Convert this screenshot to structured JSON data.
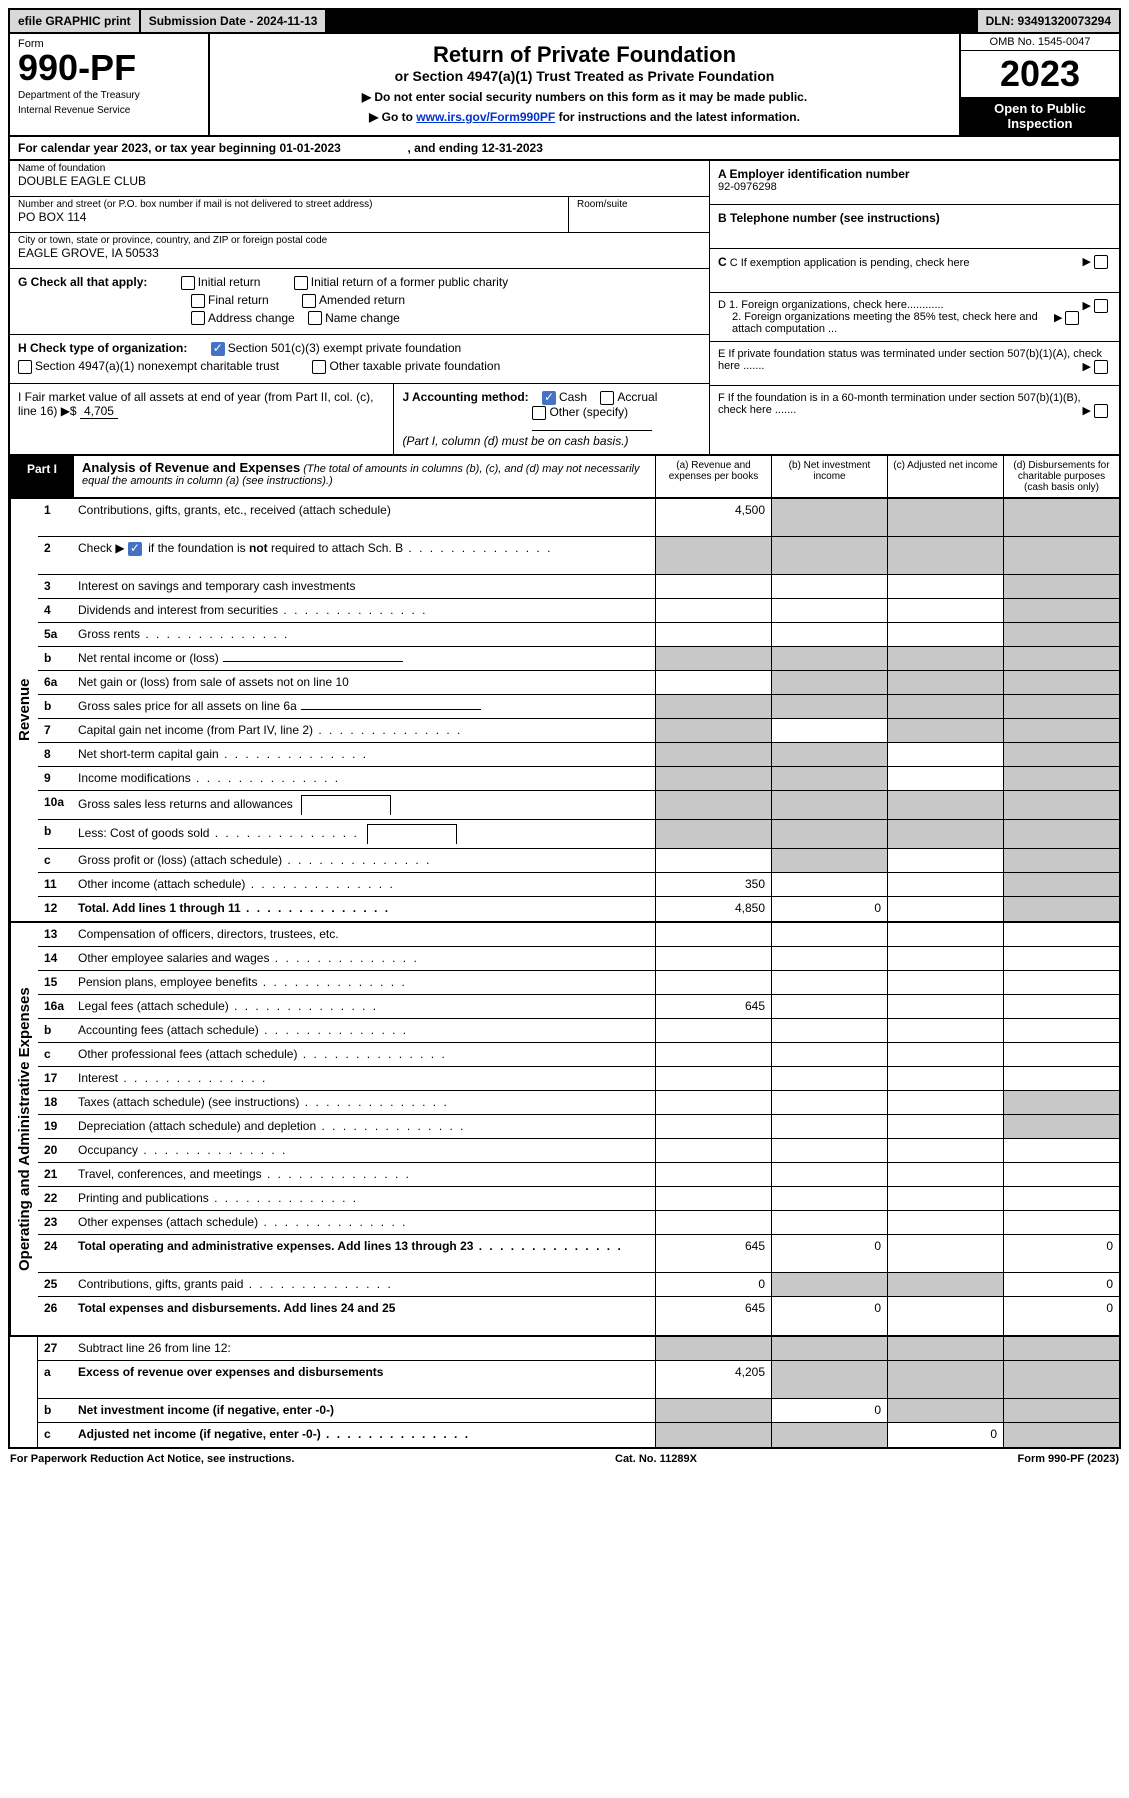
{
  "topbar": {
    "efile": "efile GRAPHIC print",
    "sub_label": "Submission Date - 2024-11-13",
    "dln": "DLN: 93491320073294"
  },
  "header": {
    "form_word": "Form",
    "form_no": "990-PF",
    "dept": "Department of the Treasury",
    "irs": "Internal Revenue Service",
    "title": "Return of Private Foundation",
    "subtitle": "or Section 4947(a)(1) Trust Treated as Private Foundation",
    "inst1": "▶ Do not enter social security numbers on this form as it may be made public.",
    "inst2_pre": "▶ Go to ",
    "inst2_link": "www.irs.gov/Form990PF",
    "inst2_post": " for instructions and the latest information.",
    "omb": "OMB No. 1545-0047",
    "year": "2023",
    "open": "Open to Public Inspection"
  },
  "calyear": "For calendar year 2023, or tax year beginning 01-01-2023                    , and ending 12-31-2023",
  "info": {
    "name_label": "Name of foundation",
    "name": "DOUBLE EAGLE CLUB",
    "addr_label": "Number and street (or P.O. box number if mail is not delivered to street address)",
    "room_label": "Room/suite",
    "addr": "PO BOX 114",
    "city_label": "City or town, state or province, country, and ZIP or foreign postal code",
    "city": "EAGLE GROVE, IA  50533",
    "ein_label": "A Employer identification number",
    "ein": "92-0976298",
    "tel_label": "B Telephone number (see instructions)",
    "c_label": "C If exemption application is pending, check here",
    "d1": "D 1. Foreign organizations, check here............",
    "d2": "2. Foreign organizations meeting the 85% test, check here and attach computation ...",
    "e_label": "E   If private foundation status was terminated under section 507(b)(1)(A), check here .......",
    "f_label": "F   If the foundation is in a 60-month termination under section 507(b)(1)(B), check here ......."
  },
  "g": {
    "label": "G Check all that apply:",
    "initial": "Initial return",
    "initial_former": "Initial return of a former public charity",
    "final": "Final return",
    "amended": "Amended return",
    "addr_change": "Address change",
    "name_change": "Name change"
  },
  "h": {
    "label": "H Check type of organization:",
    "opt1": "Section 501(c)(3) exempt private foundation",
    "opt2": "Section 4947(a)(1) nonexempt charitable trust",
    "opt3": "Other taxable private foundation"
  },
  "i": {
    "label": "I Fair market value of all assets at end of year (from Part II, col. (c), line 16)",
    "value": "4,705"
  },
  "j": {
    "label": "J Accounting method:",
    "cash": "Cash",
    "accrual": "Accrual",
    "other": "Other (specify)",
    "note": "(Part I, column (d) must be on cash basis.)"
  },
  "part1": {
    "tab": "Part I",
    "title": "Analysis of Revenue and Expenses",
    "desc": " (The total of amounts in columns (b), (c), and (d) may not necessarily equal the amounts in column (a) (see instructions).)",
    "col_a": "(a)   Revenue and expenses per books",
    "col_b": "(b)   Net investment income",
    "col_c": "(c)   Adjusted net income",
    "col_d": "(d)   Disbursements for charitable purposes (cash basis only)"
  },
  "sections": {
    "revenue": "Revenue",
    "expenses": "Operating and Administrative Expenses"
  },
  "rows": [
    {
      "section": "revenue",
      "no": "1",
      "desc": "Contributions, gifts, grants, etc., received (attach schedule)",
      "a": "4,500",
      "tall": true,
      "grey_b": true,
      "grey_c": true,
      "grey_d": true
    },
    {
      "section": "revenue",
      "no": "2",
      "desc_html": "Check ▶ [cb-checked] if the foundation is <b>not</b> required to attach Sch. B",
      "dots": true,
      "grey_a": true,
      "grey_b": true,
      "grey_c": true,
      "grey_d": true,
      "tall": true
    },
    {
      "section": "revenue",
      "no": "3",
      "desc": "Interest on savings and temporary cash investments",
      "grey_d": true
    },
    {
      "section": "revenue",
      "no": "4",
      "desc": "Dividends and interest from securities",
      "dots": true,
      "grey_d": true
    },
    {
      "section": "revenue",
      "no": "5a",
      "desc": "Gross rents",
      "dots": true,
      "grey_d": true
    },
    {
      "section": "revenue",
      "no": "b",
      "desc": "Net rental income or (loss)",
      "inline": true,
      "grey_a": true,
      "grey_b": true,
      "grey_c": true,
      "grey_d": true
    },
    {
      "section": "revenue",
      "no": "6a",
      "desc": "Net gain or (loss) from sale of assets not on line 10",
      "grey_b": true,
      "grey_c": true,
      "grey_d": true
    },
    {
      "section": "revenue",
      "no": "b",
      "desc": "Gross sales price for all assets on line 6a",
      "inline": true,
      "grey_a": true,
      "grey_b": true,
      "grey_c": true,
      "grey_d": true
    },
    {
      "section": "revenue",
      "no": "7",
      "desc": "Capital gain net income (from Part IV, line 2)",
      "dots": true,
      "grey_a": true,
      "grey_c": true,
      "grey_d": true
    },
    {
      "section": "revenue",
      "no": "8",
      "desc": "Net short-term capital gain",
      "dots": true,
      "grey_a": true,
      "grey_b": true,
      "grey_d": true
    },
    {
      "section": "revenue",
      "no": "9",
      "desc": "Income modifications",
      "dots": true,
      "grey_a": true,
      "grey_b": true,
      "grey_d": true
    },
    {
      "section": "revenue",
      "no": "10a",
      "desc": "Gross sales less returns and allowances",
      "inline_short": true,
      "grey_a": true,
      "grey_b": true,
      "grey_c": true,
      "grey_d": true
    },
    {
      "section": "revenue",
      "no": "b",
      "desc": "Less: Cost of goods sold",
      "dots": true,
      "inline_short": true,
      "grey_a": true,
      "grey_b": true,
      "grey_c": true,
      "grey_d": true
    },
    {
      "section": "revenue",
      "no": "c",
      "desc": "Gross profit or (loss) (attach schedule)",
      "dots": true,
      "grey_b": true,
      "grey_d": true
    },
    {
      "section": "revenue",
      "no": "11",
      "desc": "Other income (attach schedule)",
      "dots": true,
      "a": "350",
      "grey_d": true
    },
    {
      "section": "revenue",
      "no": "12",
      "desc": "Total. Add lines 1 through 11",
      "bold": true,
      "dots": true,
      "a": "4,850",
      "b": "0",
      "grey_d": true
    },
    {
      "section": "expenses",
      "no": "13",
      "desc": "Compensation of officers, directors, trustees, etc."
    },
    {
      "section": "expenses",
      "no": "14",
      "desc": "Other employee salaries and wages",
      "dots": true
    },
    {
      "section": "expenses",
      "no": "15",
      "desc": "Pension plans, employee benefits",
      "dots": true
    },
    {
      "section": "expenses",
      "no": "16a",
      "desc": "Legal fees (attach schedule)",
      "dots": true,
      "a": "645"
    },
    {
      "section": "expenses",
      "no": "b",
      "desc": "Accounting fees (attach schedule)",
      "dots": true
    },
    {
      "section": "expenses",
      "no": "c",
      "desc": "Other professional fees (attach schedule)",
      "dots": true
    },
    {
      "section": "expenses",
      "no": "17",
      "desc": "Interest",
      "dots": true
    },
    {
      "section": "expenses",
      "no": "18",
      "desc": "Taxes (attach schedule) (see instructions)",
      "dots": true,
      "grey_d": true
    },
    {
      "section": "expenses",
      "no": "19",
      "desc": "Depreciation (attach schedule) and depletion",
      "dots": true,
      "grey_d": true
    },
    {
      "section": "expenses",
      "no": "20",
      "desc": "Occupancy",
      "dots": true
    },
    {
      "section": "expenses",
      "no": "21",
      "desc": "Travel, conferences, and meetings",
      "dots": true
    },
    {
      "section": "expenses",
      "no": "22",
      "desc": "Printing and publications",
      "dots": true
    },
    {
      "section": "expenses",
      "no": "23",
      "desc": "Other expenses (attach schedule)",
      "dots": true
    },
    {
      "section": "expenses",
      "no": "24",
      "desc": "Total operating and administrative expenses. Add lines 13 through 23",
      "bold": true,
      "dots": true,
      "a": "645",
      "b": "0",
      "d": "0",
      "tall": true
    },
    {
      "section": "expenses",
      "no": "25",
      "desc": "Contributions, gifts, grants paid",
      "dots": true,
      "a": "0",
      "grey_b": true,
      "grey_c": true,
      "d": "0"
    },
    {
      "section": "expenses",
      "no": "26",
      "desc": "Total expenses and disbursements. Add lines 24 and 25",
      "bold": true,
      "a": "645",
      "b": "0",
      "d": "0",
      "tall": true
    },
    {
      "section": "none",
      "no": "27",
      "desc": "Subtract line 26 from line 12:",
      "grey_a": true,
      "grey_b": true,
      "grey_c": true,
      "grey_d": true
    },
    {
      "section": "none",
      "no": "a",
      "desc": "Excess of revenue over expenses and disbursements",
      "bold": true,
      "a": "4,205",
      "grey_b": true,
      "grey_c": true,
      "grey_d": true,
      "tall": true
    },
    {
      "section": "none",
      "no": "b",
      "desc": "Net investment income (if negative, enter -0-)",
      "bold": true,
      "grey_a": true,
      "b": "0",
      "grey_c": true,
      "grey_d": true
    },
    {
      "section": "none",
      "no": "c",
      "desc": "Adjusted net income (if negative, enter -0-)",
      "bold": true,
      "dots": true,
      "grey_a": true,
      "grey_b": true,
      "c": "0",
      "grey_d": true
    }
  ],
  "footer": {
    "left": "For Paperwork Reduction Act Notice, see instructions.",
    "center": "Cat. No. 11289X",
    "right": "Form 990-PF (2023)"
  },
  "colors": {
    "grey_cell": "#c8c8c8",
    "topbar_bg": "#d8d8d8",
    "link": "#0033cc",
    "checked": "#4472c4"
  }
}
